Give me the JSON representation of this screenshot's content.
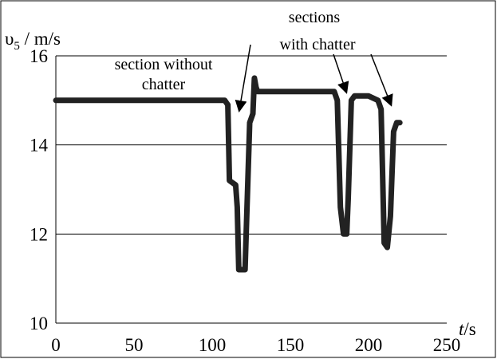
{
  "chart_data": {
    "type": "line",
    "ylabel_main": "υ",
    "ylabel_sub": "5",
    "ylabel_unit": " / m/s",
    "xlabel_main": "t",
    "xlabel_unit": "/s",
    "xlim": [
      0,
      250
    ],
    "ylim": [
      10,
      16
    ],
    "xticks": [
      "0",
      "50",
      "100",
      "150",
      "200",
      "250"
    ],
    "yticks": [
      "10",
      "12",
      "14",
      "16"
    ],
    "grid": "horizontal",
    "series": [
      {
        "color": "#222222",
        "x": [
          0,
          108,
          110,
          111,
          115,
          116,
          117,
          119,
          121,
          122,
          124,
          126,
          127,
          128,
          129,
          130,
          160,
          178,
          180,
          182,
          184,
          186,
          187,
          189,
          191,
          200,
          206,
          208,
          210,
          212,
          214,
          216,
          218,
          220
        ],
        "y": [
          15.0,
          15.0,
          14.9,
          13.2,
          13.1,
          12.6,
          11.2,
          11.2,
          11.2,
          12.3,
          14.5,
          14.7,
          15.5,
          15.3,
          15.2,
          15.2,
          15.2,
          15.2,
          15.0,
          12.6,
          12.0,
          12.0,
          12.8,
          15.0,
          15.1,
          15.1,
          15.0,
          14.8,
          11.8,
          11.7,
          12.4,
          14.3,
          14.5,
          14.5
        ]
      }
    ],
    "annotations": [
      {
        "lines": [
          "section without",
          "chatter"
        ],
        "arrow_to": [
          118,
          13.8
        ]
      },
      {
        "lines": [
          "sections",
          "with chatter"
        ],
        "arrows_to": [
          [
            186,
            15.1
          ],
          [
            215,
            14.4
          ]
        ]
      }
    ]
  }
}
